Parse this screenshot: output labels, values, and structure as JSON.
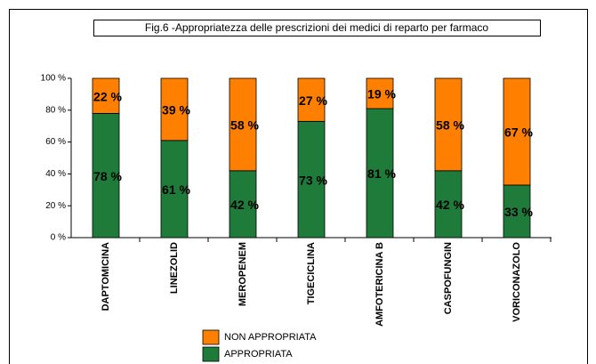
{
  "chart_data": {
    "type": "stacked_bar",
    "title": "Fig.6 -Appropriatezza delle prescrizioni dei medici di reparto per farmaco",
    "categories": [
      "DAPTOMICINA",
      "LINEZOLID",
      "MEROPENEM",
      "TIGECICLINA",
      "AMFOTERICINA B",
      "CASPOFUNGIN",
      "VORICONAZOLO"
    ],
    "series": [
      {
        "name": "APPROPRIATA",
        "color": "#1e7b3a",
        "values": [
          78,
          61,
          42,
          73,
          81,
          42,
          33
        ],
        "value_labels": [
          "78 %",
          "61 %",
          "42 %",
          "73 %",
          "81 %",
          "42 %",
          "33 %"
        ]
      },
      {
        "name": "NON APPROPRIATA",
        "color": "#ff8000",
        "values": [
          22,
          39,
          58,
          27,
          19,
          58,
          67
        ],
        "value_labels": [
          "22 %",
          "39 %",
          "58 %",
          "27 %",
          "19 %",
          "58 %",
          "67 %"
        ]
      }
    ],
    "ylim": [
      0,
      100
    ],
    "yticks": [
      {
        "value": 0,
        "label": "0 %"
      },
      {
        "value": 20,
        "label": "20 %"
      },
      {
        "value": 40,
        "label": "40 %"
      },
      {
        "value": 60,
        "label": "60 %"
      },
      {
        "value": 80,
        "label": "80 %"
      },
      {
        "value": 100,
        "label": "100 %"
      }
    ],
    "legend": "bottom"
  }
}
